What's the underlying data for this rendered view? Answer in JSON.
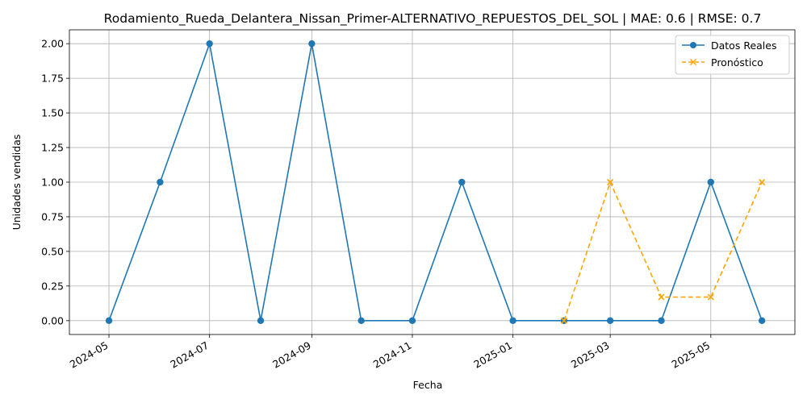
{
  "chart_data": {
    "type": "line",
    "title": "Rodamiento_Rueda_Delantera_Nissan_Primer-ALTERNATIVO_REPUESTOS_DEL_SOL | MAE: 0.6 | RMSE: 0.7",
    "xlabel": "Fecha",
    "ylabel": "Unidades vendidas",
    "xlim": [
      "2024-04-07",
      "2025-06-21"
    ],
    "ylim": [
      -0.1,
      2.1
    ],
    "x_ticks": [
      "2024-05",
      "2024-07",
      "2024-09",
      "2024-11",
      "2025-01",
      "2025-03",
      "2025-05"
    ],
    "y_ticks": [
      "0.00",
      "0.25",
      "0.50",
      "0.75",
      "1.00",
      "1.25",
      "1.50",
      "1.75",
      "2.00"
    ],
    "grid": true,
    "legend_position": "upper right",
    "series": [
      {
        "name": "Datos Reales",
        "color": "#1f77b4",
        "style": "solid",
        "marker": "circle",
        "x": [
          "2024-05-01",
          "2024-06-01",
          "2024-07-01",
          "2024-08-01",
          "2024-09-01",
          "2024-10-01",
          "2024-11-01",
          "2024-12-01",
          "2025-01-01",
          "2025-02-01",
          "2025-03-01",
          "2025-04-01",
          "2025-05-01",
          "2025-06-01"
        ],
        "y": [
          0,
          1,
          2,
          0,
          2,
          0,
          0,
          1,
          0,
          0,
          0,
          0,
          1,
          0
        ]
      },
      {
        "name": "Pronóstico",
        "color": "#ffa500",
        "style": "dashed",
        "marker": "x",
        "x": [
          "2025-02-01",
          "2025-03-01",
          "2025-04-01",
          "2025-05-01",
          "2025-06-01"
        ],
        "y": [
          0,
          1,
          0.17,
          0.17,
          1
        ]
      }
    ]
  }
}
